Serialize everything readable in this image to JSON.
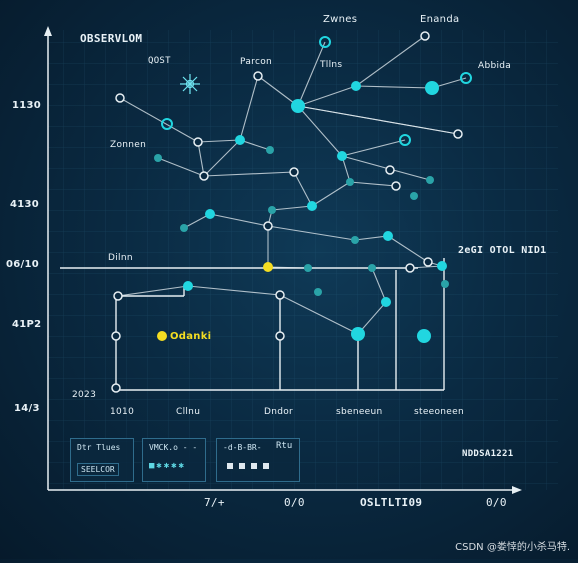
{
  "diagram": {
    "title": "OBSERVLOM",
    "y_labels": [
      "1130",
      "4130",
      "06/10",
      "41P2",
      "14/3"
    ],
    "x_labels": [
      "2023",
      "1010",
      "Cllnu",
      "Dndor",
      "sbeneeun",
      "steeoneen"
    ],
    "bottom_axis_labels": [
      "7/+",
      "0/0",
      "OSLTLTI09",
      "0/0"
    ],
    "top_labels": [
      "Zwnes",
      "Enanda"
    ],
    "node_labels": {
      "qost": "QOST",
      "parcon": "Parcon",
      "tllns": "Tllns",
      "abbida": "Abbida",
      "zonnen": "Zonnen",
      "dilnn": "Dilnn",
      "highlight": "Odanki",
      "right_callout": "2eGI OTOL NID1",
      "right_bottom": "NDDSA1221"
    }
  },
  "controls": {
    "panel1": {
      "line1": "Dtr Tlues",
      "line2": "SEELCOR"
    },
    "panel2": {
      "line1": "VMCK.o - -",
      "symbols": "■✱✱✱✱"
    },
    "panel3": {
      "line1": "-d-B-BR-"
    },
    "panel4": {
      "line1": "Rtu"
    }
  },
  "watermark": "CSDN @娄悻的小杀马特.",
  "colors": {
    "node_cyan": "#21d6e0",
    "node_teal": "#2aa3a8",
    "highlight": "#f4dd22",
    "line": "#e7eff3",
    "background": "#0a2a42"
  }
}
